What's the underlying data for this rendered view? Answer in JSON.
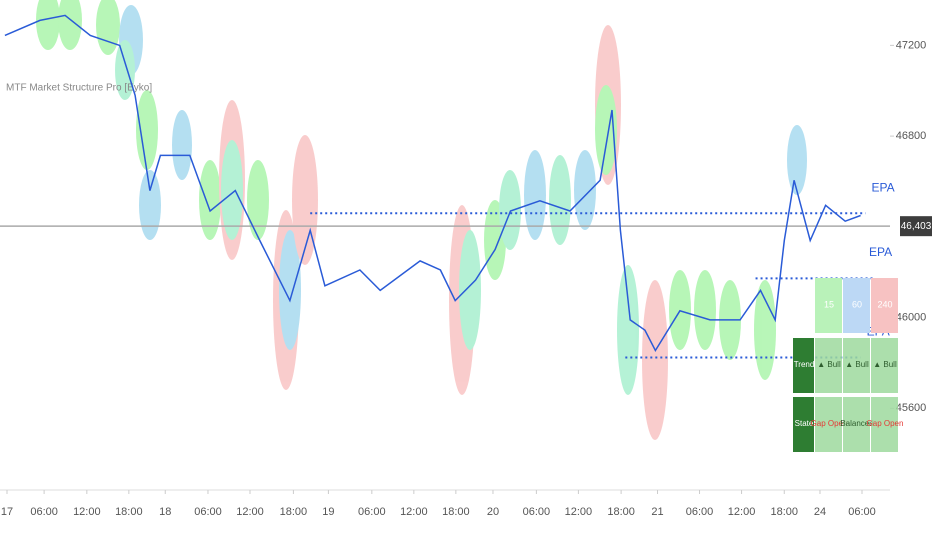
{
  "chart_data": {
    "type": "line",
    "title": "MTF Market Structure Pro [Eyko]",
    "x": [
      -0.3,
      4.7,
      8.3,
      11.9,
      16.1,
      18.3,
      20.4,
      21.9,
      26.1,
      29,
      32.6,
      36.1,
      40.4,
      43.3,
      45.4,
      50.4,
      53.3,
      59,
      61.9,
      64,
      66.9,
      69.7,
      71.9,
      76.1,
      80.4,
      84.7,
      86.4,
      87.6,
      89,
      91.1,
      92.6,
      96.1,
      100.4,
      104.7,
      107.6,
      109.7,
      111,
      112.4,
      114.7,
      116.9,
      119.7,
      121.9
    ],
    "series": [
      {
        "color": "#2a5bd7",
        "values": [
          47244,
          47310,
          47332,
          47244,
          47200,
          46980,
          46560,
          46715,
          46715,
          46470,
          46560,
          46340,
          46075,
          46385,
          46140,
          46210,
          46120,
          46250,
          46210,
          46075,
          46165,
          46300,
          46470,
          46515,
          46470,
          46605,
          46915,
          46385,
          45990,
          45945,
          45855,
          46030,
          45990,
          45990,
          46120,
          45990,
          46340,
          46605,
          46340,
          46495,
          46425,
          46450
        ]
      }
    ],
    "xlim": [
      -1,
      126.1
    ],
    "xticks": [
      {
        "value": 0,
        "label": "17"
      },
      {
        "value": 5.3,
        "label": "06:00"
      },
      {
        "value": 11.4,
        "label": "12:00"
      },
      {
        "value": 17.4,
        "label": "18:00"
      },
      {
        "value": 22.6,
        "label": "18"
      },
      {
        "value": 28.7,
        "label": "06:00"
      },
      {
        "value": 34.7,
        "label": "12:00"
      },
      {
        "value": 40.9,
        "label": "18:00"
      },
      {
        "value": 45.9,
        "label": "19"
      },
      {
        "value": 52.1,
        "label": "06:00"
      },
      {
        "value": 58.1,
        "label": "12:00"
      },
      {
        "value": 64.1,
        "label": "18:00"
      },
      {
        "value": 69.4,
        "label": "20"
      },
      {
        "value": 75.6,
        "label": "06:00"
      },
      {
        "value": 81.6,
        "label": "12:00"
      },
      {
        "value": 87.7,
        "label": "18:00"
      },
      {
        "value": 92.9,
        "label": "21"
      },
      {
        "value": 98.9,
        "label": "06:00"
      },
      {
        "value": 104.9,
        "label": "12:00"
      },
      {
        "value": 111,
        "label": "18:00"
      },
      {
        "value": 116.1,
        "label": "24"
      },
      {
        "value": 122.1,
        "label": "06:00"
      }
    ],
    "ylim": [
      45240,
      47400
    ],
    "yticks": [
      45600,
      46000,
      46800,
      47200
    ],
    "last_price": {
      "value": 46403,
      "label": "46,403"
    },
    "levels": [
      {
        "value": 46460,
        "from": 43.3,
        "to": 122.6,
        "label": "EPA"
      },
      {
        "value": 46173,
        "from": 106.9,
        "to": 124
      },
      {
        "value": 45824,
        "from": 88.3,
        "to": 121.9,
        "label": "EPA"
      }
    ],
    "level_label": "EPA",
    "table": {
      "header": [
        "15",
        "60",
        "240"
      ],
      "rows": [
        [
          "Trend",
          "▲ Bull",
          "▲ Bull",
          "▲ Bull"
        ],
        [
          "State",
          "Gap Open",
          "Balanced",
          "Gap Open"
        ]
      ]
    }
  }
}
